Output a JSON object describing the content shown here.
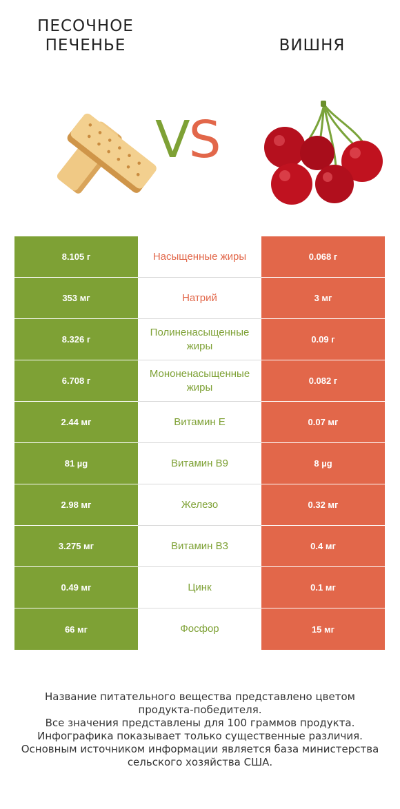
{
  "header": {
    "left_title_line1": "ПЕСОЧНОЕ",
    "left_title_line2": "ПЕЧЕНЬЕ",
    "right_title": "ВИШНЯ",
    "vs_v": "V",
    "vs_s": "S"
  },
  "colors": {
    "left_winner": "#7ea135",
    "right_winner": "#e2674a"
  },
  "rows": [
    {
      "left": "8.105 г",
      "nutrient": "Насыщенные жиры",
      "right": "0.068 г",
      "winner": "right"
    },
    {
      "left": "353 мг",
      "nutrient": "Натрий",
      "right": "3 мг",
      "winner": "right"
    },
    {
      "left": "8.326 г",
      "nutrient": "Полиненасыщенные жиры",
      "right": "0.09 г",
      "winner": "left"
    },
    {
      "left": "6.708 г",
      "nutrient": "Мононенасыщенные жиры",
      "right": "0.082 г",
      "winner": "left"
    },
    {
      "left": "2.44 мг",
      "nutrient": "Витамин E",
      "right": "0.07 мг",
      "winner": "left"
    },
    {
      "left": "81 µg",
      "nutrient": "Витамин B9",
      "right": "8 µg",
      "winner": "left"
    },
    {
      "left": "2.98 мг",
      "nutrient": "Железо",
      "right": "0.32 мг",
      "winner": "left"
    },
    {
      "left": "3.275 мг",
      "nutrient": "Витамин B3",
      "right": "0.4 мг",
      "winner": "left"
    },
    {
      "left": "0.49 мг",
      "nutrient": "Цинк",
      "right": "0.1 мг",
      "winner": "left"
    },
    {
      "left": "66 мг",
      "nutrient": "Фосфор",
      "right": "15 мг",
      "winner": "left"
    }
  ],
  "footer": {
    "line1": "Название питательного вещества представлено цветом",
    "line2": "продукта-победителя.",
    "line3": "Все значения представлены для 100 граммов продукта.",
    "line4": "Инфографика показывает только существенные различия.",
    "line5": "Основным источником информации является база министерства",
    "line6": "сельского хозяйства США."
  }
}
